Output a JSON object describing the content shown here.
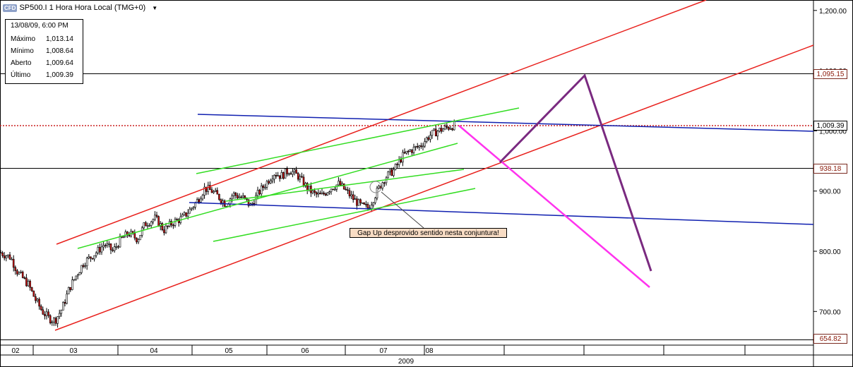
{
  "header": {
    "instrument": "SP500.I",
    "timeframe": "1 Hora Hora Local (TMG+0)",
    "badge": "CFD"
  },
  "infobox": {
    "date": "13/08/09, 6:00 PM",
    "rows": [
      {
        "label": "Máximo",
        "value": "1,013.14"
      },
      {
        "label": "Mínimo",
        "value": "1,008.64"
      },
      {
        "label": "Aberto",
        "value": "1,009.64"
      },
      {
        "label": "Último",
        "value": "1,009.39"
      }
    ]
  },
  "annotation": "Gap Up desprovido sentido nesta conjuntura!",
  "price_labels": {
    "p1095": "1,095.15",
    "last": "1,009.39",
    "p938": "938.18",
    "p654": "654.82"
  },
  "colors": {
    "channel": "#e8201c",
    "trend": "#1020b0",
    "inner": "#33dd22",
    "projection_a": "#ff33ee",
    "projection_b": "#7a2a80",
    "last_price": "#cc2222"
  },
  "chart_data": {
    "type": "candlestick",
    "instrument": "SP500.I",
    "y_ticks": [
      "1,200.00",
      "1,100.00",
      "1,000.00",
      "900.00",
      "800.00",
      "700.00"
    ],
    "x_ticks": [
      "02",
      "03",
      "04",
      "05",
      "06",
      "07",
      "08"
    ],
    "x_year": "2009",
    "price_path": [
      [
        0,
        798
      ],
      [
        15,
        790
      ],
      [
        25,
        765
      ],
      [
        40,
        745
      ],
      [
        50,
        720
      ],
      [
        60,
        700
      ],
      [
        70,
        688
      ],
      [
        78,
        685
      ],
      [
        88,
        705
      ],
      [
        98,
        738
      ],
      [
        108,
        760
      ],
      [
        118,
        780
      ],
      [
        128,
        790
      ],
      [
        138,
        800
      ],
      [
        148,
        812
      ],
      [
        160,
        800
      ],
      [
        170,
        818
      ],
      [
        182,
        830
      ],
      [
        195,
        820
      ],
      [
        205,
        845
      ],
      [
        220,
        855
      ],
      [
        232,
        835
      ],
      [
        245,
        848
      ],
      [
        258,
        855
      ],
      [
        270,
        870
      ],
      [
        280,
        885
      ],
      [
        290,
        905
      ],
      [
        300,
        900
      ],
      [
        310,
        890
      ],
      [
        320,
        878
      ],
      [
        330,
        895
      ],
      [
        345,
        888
      ],
      [
        355,
        875
      ],
      [
        365,
        895
      ],
      [
        378,
        915
      ],
      [
        388,
        930
      ],
      [
        398,
        925
      ],
      [
        410,
        935
      ],
      [
        422,
        925
      ],
      [
        435,
        905
      ],
      [
        445,
        895
      ],
      [
        455,
        892
      ],
      [
        468,
        905
      ],
      [
        480,
        912
      ],
      [
        490,
        900
      ],
      [
        502,
        885
      ],
      [
        512,
        875
      ],
      [
        522,
        872
      ],
      [
        532,
        895
      ],
      [
        545,
        922
      ],
      [
        558,
        935
      ],
      [
        570,
        958
      ],
      [
        582,
        968
      ],
      [
        595,
        975
      ],
      [
        608,
        992
      ],
      [
        620,
        1000
      ],
      [
        632,
        1005
      ],
      [
        645,
        1010
      ]
    ],
    "reference_levels": [
      1095.15,
      1009.39,
      938.18,
      654.82
    ]
  }
}
